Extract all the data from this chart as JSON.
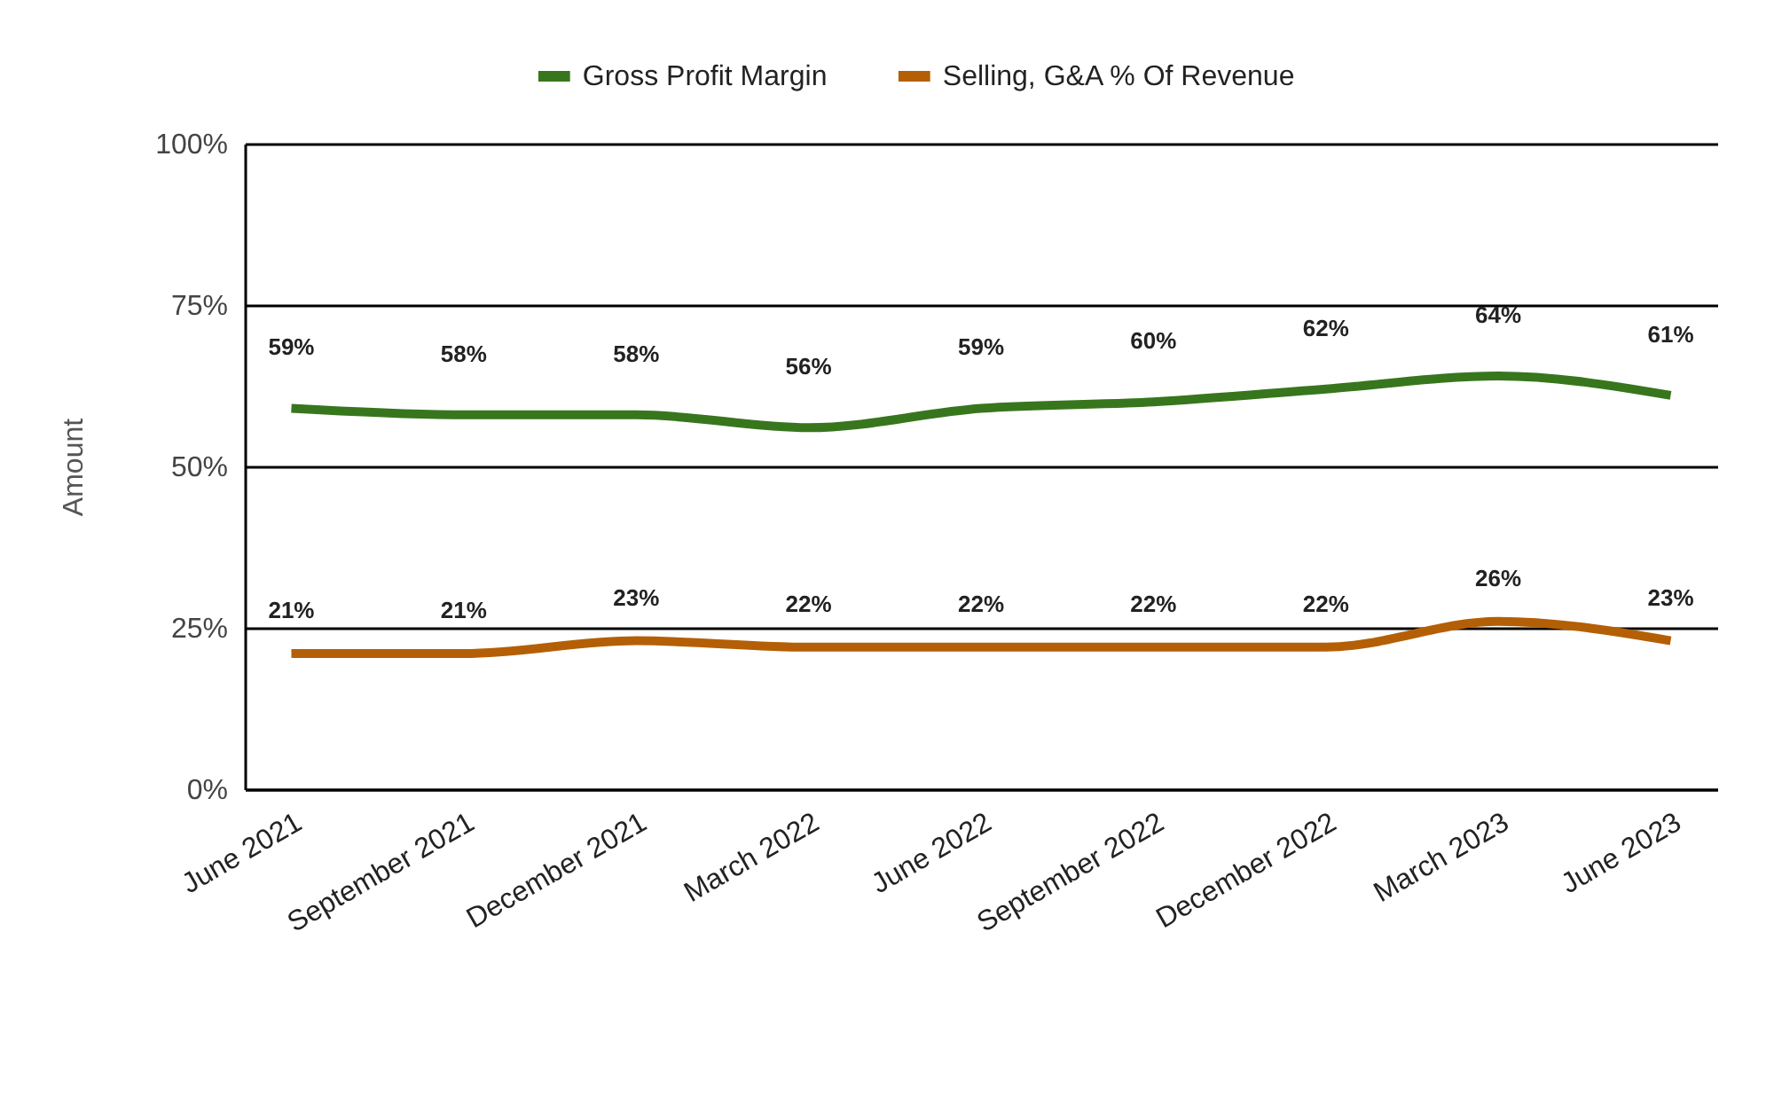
{
  "chart_data": {
    "type": "line",
    "ylabel": "Amount",
    "categories": [
      "June 2021",
      "September 2021",
      "December 2021",
      "March 2022",
      "June 2022",
      "September 2022",
      "December 2022",
      "March 2023",
      "June 2023"
    ],
    "series": [
      {
        "name": "Gross Profit Margin",
        "color": "#38761d",
        "values": [
          59,
          58,
          58,
          56,
          59,
          60,
          62,
          64,
          61
        ],
        "value_labels": [
          "59%",
          "58%",
          "58%",
          "56%",
          "59%",
          "60%",
          "62%",
          "64%",
          "61%"
        ]
      },
      {
        "name": "Selling, G&A % Of Revenue",
        "color": "#b45f06",
        "values": [
          21,
          21,
          23,
          22,
          22,
          22,
          22,
          26,
          23
        ],
        "value_labels": [
          "21%",
          "21%",
          "23%",
          "22%",
          "22%",
          "22%",
          "22%",
          "26%",
          "23%"
        ]
      }
    ],
    "ylim": [
      0,
      100
    ],
    "yticks": [
      {
        "value": 0,
        "label": "0%"
      },
      {
        "value": 25,
        "label": "25%"
      },
      {
        "value": 50,
        "label": "50%"
      },
      {
        "value": 75,
        "label": "75%"
      },
      {
        "value": 100,
        "label": "100%"
      }
    ],
    "grid": "y",
    "legend": "top"
  }
}
